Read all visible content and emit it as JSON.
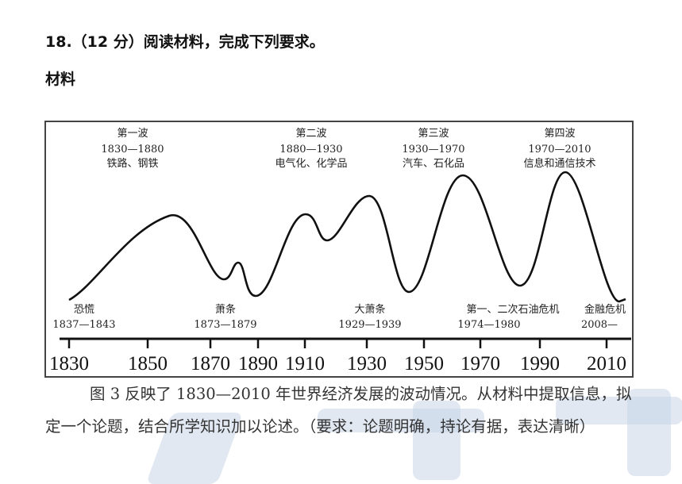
{
  "question": {
    "title": "18.（12 分）阅读材料，完成下列要求。",
    "material_label": "材料"
  },
  "figure": {
    "waves": [
      {
        "name": "第一波",
        "period": "1830—1880",
        "tech": "铁路、钢铁"
      },
      {
        "name": "第二波",
        "period": "1880—1930",
        "tech": "电气化、化学品"
      },
      {
        "name": "第三波",
        "period": "1930—1970",
        "tech": "汽车、石化品"
      },
      {
        "name": "第四波",
        "period": "1970—2010",
        "tech": "信息和通信技术"
      }
    ],
    "crises": [
      {
        "name": "恐慌",
        "period": "1837—1843"
      },
      {
        "name": "萧条",
        "period": "1873—1879"
      },
      {
        "name": "大萧条",
        "period": "1929—1939"
      },
      {
        "name": "第一、二次石油危机",
        "period": "1974—1980"
      },
      {
        "name": "金融危机",
        "period": "2008—"
      }
    ],
    "axis_ticks": [
      "1830",
      "1850",
      "1870",
      "1890",
      "1910",
      "1930",
      "1950",
      "1970",
      "1990",
      "2010"
    ]
  },
  "paragraph": "图 3 反映了 1830—2010 年世界经济发展的波动情况。从材料中提取信息，拟定一个论题，结合所学知识加以论述。（要求：论题明确，持论有据，表达清晰）"
}
